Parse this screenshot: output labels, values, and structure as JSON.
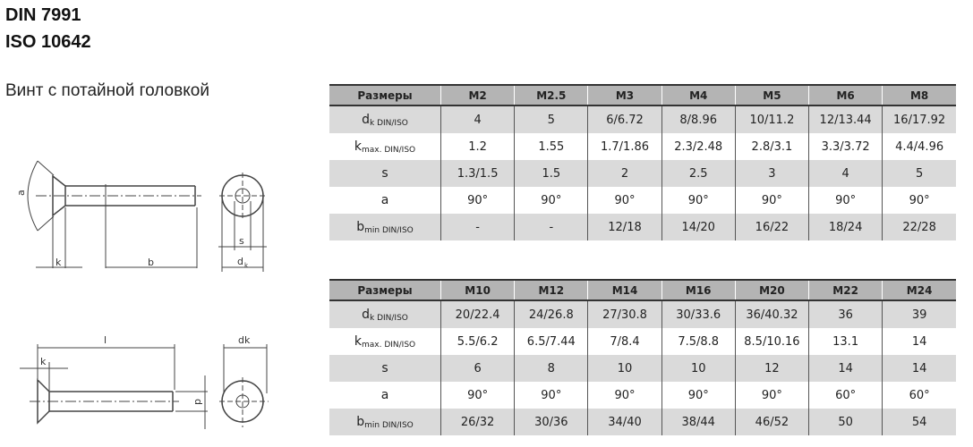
{
  "header": {
    "line1": "DIN 7991",
    "line2": "ISO 10642",
    "subtitle": "Винт с потайной головкой"
  },
  "drawing_labels": {
    "a": "a",
    "k": "k",
    "b": "b",
    "s": "s",
    "dk": "d",
    "dk_sub": "k",
    "l": "l",
    "k2": "k",
    "dk2": "dk",
    "d": "d"
  },
  "tables": [
    {
      "headers": [
        "Размеры",
        "M2",
        "M2.5",
        "M3",
        "M4",
        "M5",
        "M6",
        "M8"
      ],
      "rows": [
        {
          "label": "d",
          "sub": "k DIN/ISO",
          "values": [
            "4",
            "5",
            "6/6.72",
            "8/8.96",
            "10/11.2",
            "12/13.44",
            "16/17.92"
          ]
        },
        {
          "label": "k",
          "sub": "max. DIN/ISO",
          "values": [
            "1.2",
            "1.55",
            "1.7/1.86",
            "2.3/2.48",
            "2.8/3.1",
            "3.3/3.72",
            "4.4/4.96"
          ]
        },
        {
          "label": "s",
          "sub": "",
          "values": [
            "1.3/1.5",
            "1.5",
            "2",
            "2.5",
            "3",
            "4",
            "5"
          ]
        },
        {
          "label": "a",
          "sub": "",
          "values": [
            "90°",
            "90°",
            "90°",
            "90°",
            "90°",
            "90°",
            "90°"
          ]
        },
        {
          "label": "b",
          "sub": "min DIN/ISO",
          "values": [
            "-",
            "-",
            "12/18",
            "14/20",
            "16/22",
            "18/24",
            "22/28"
          ]
        }
      ]
    },
    {
      "headers": [
        "Размеры",
        "M10",
        "M12",
        "M14",
        "M16",
        "M20",
        "M22",
        "M24"
      ],
      "rows": [
        {
          "label": "d",
          "sub": "k DIN/ISO",
          "values": [
            "20/22.4",
            "24/26.8",
            "27/30.8",
            "30/33.6",
            "36/40.32",
            "36",
            "39"
          ]
        },
        {
          "label": "k",
          "sub": "max. DIN/ISO",
          "values": [
            "5.5/6.2",
            "6.5/7.44",
            "7/8.4",
            "7.5/8.8",
            "8.5/10.16",
            "13.1",
            "14"
          ]
        },
        {
          "label": "s",
          "sub": "",
          "values": [
            "6",
            "8",
            "10",
            "10",
            "12",
            "14",
            "14"
          ]
        },
        {
          "label": "a",
          "sub": "",
          "values": [
            "90°",
            "90°",
            "90°",
            "90°",
            "90°",
            "60°",
            "60°"
          ]
        },
        {
          "label": "b",
          "sub": "min DIN/ISO",
          "values": [
            "26/32",
            "30/36",
            "34/40",
            "38/44",
            "46/52",
            "50",
            "54"
          ]
        }
      ]
    }
  ]
}
